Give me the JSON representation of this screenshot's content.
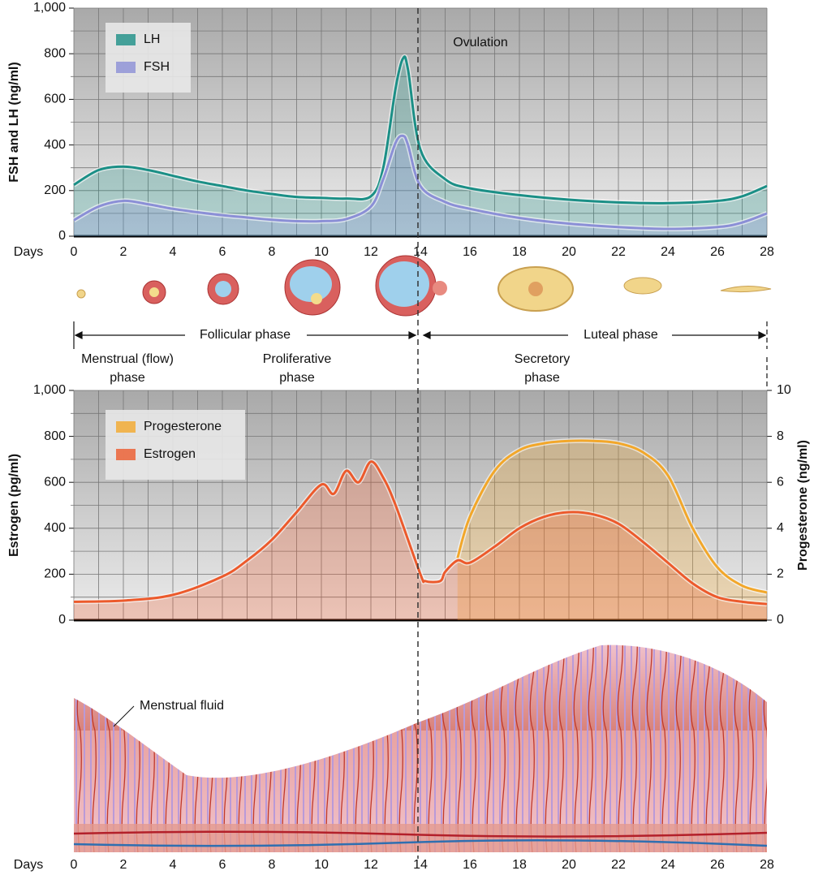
{
  "chart_data": [
    {
      "type": "line",
      "ylabel": "FSH and LH (ng/ml)",
      "xlabel": "Days",
      "x": [
        0,
        1,
        2,
        3,
        4,
        5,
        6,
        7,
        8,
        9,
        10,
        11,
        12,
        12.5,
        13,
        13.3,
        13.5,
        14,
        15,
        16,
        18,
        20,
        22,
        24,
        26,
        27,
        28
      ],
      "series": [
        {
          "name": "LH",
          "color": "#1b8f86",
          "values": [
            225,
            290,
            305,
            290,
            265,
            240,
            220,
            200,
            185,
            172,
            168,
            165,
            175,
            300,
            650,
            780,
            730,
            380,
            250,
            210,
            180,
            160,
            148,
            145,
            155,
            175,
            220
          ]
        },
        {
          "name": "FSH",
          "color": "#8b8fd6",
          "values": [
            70,
            130,
            155,
            140,
            120,
            105,
            92,
            82,
            72,
            66,
            66,
            75,
            130,
            250,
            410,
            440,
            400,
            220,
            150,
            120,
            80,
            55,
            40,
            32,
            40,
            60,
            100
          ]
        }
      ],
      "xlim": [
        0,
        28
      ],
      "xticks": [
        0,
        2,
        4,
        6,
        8,
        10,
        12,
        14,
        16,
        18,
        20,
        22,
        24,
        26,
        28
      ],
      "ylim": [
        0,
        1000
      ],
      "yticks": [
        0,
        200,
        400,
        600,
        800,
        {
          "value": 1000,
          "label": "1,000"
        }
      ],
      "grid": true,
      "minor_grid": true,
      "legend": "upper left",
      "annotations": [
        "Ovulation"
      ]
    },
    {
      "type": "line",
      "ylabel": "Estrogen (pg/ml)",
      "y2label": "Progesterone (ng/ml)",
      "xlabel": "Days",
      "x": [
        0,
        2,
        4,
        6,
        7,
        8,
        9,
        10,
        10.5,
        11,
        11.5,
        12,
        12.5,
        13,
        14,
        14.2,
        14.8,
        15,
        15.5,
        16,
        17,
        18,
        19,
        20,
        21,
        22,
        23,
        24,
        25,
        26,
        27,
        28
      ],
      "series": [
        {
          "name": "Progesterone",
          "color": "#f2a72a",
          "axis": "y2",
          "values": [
            null,
            null,
            null,
            null,
            null,
            null,
            null,
            null,
            null,
            null,
            null,
            null,
            null,
            null,
            null,
            null,
            null,
            null,
            2.7,
            4.5,
            6.5,
            7.4,
            7.7,
            7.8,
            7.8,
            7.7,
            7.3,
            6.3,
            4,
            2.3,
            1.5,
            1.2
          ]
        },
        {
          "name": "Estrogen",
          "color": "#ec5a2c",
          "values": [
            80,
            85,
            110,
            190,
            260,
            350,
            470,
            590,
            550,
            650,
            600,
            690,
            620,
            500,
            200,
            170,
            170,
            210,
            260,
            250,
            320,
            400,
            450,
            470,
            460,
            420,
            340,
            250,
            160,
            100,
            80,
            70
          ]
        }
      ],
      "xlim": [
        0,
        28
      ],
      "xticks": [
        0,
        2,
        4,
        6,
        8,
        10,
        12,
        14,
        16,
        18,
        20,
        22,
        24,
        26,
        28
      ],
      "ylim": [
        0,
        1000
      ],
      "yticks": [
        0,
        200,
        400,
        600,
        800,
        {
          "value": 1000,
          "label": "1,000"
        }
      ],
      "y2lim": [
        0,
        10
      ],
      "y2ticks": [
        0,
        2,
        4,
        6,
        8,
        10
      ],
      "grid": true,
      "minor_grid": true,
      "legend": "upper left"
    }
  ],
  "phases": {
    "ovarian": [
      "Follicular phase",
      "Luteal phase"
    ],
    "uterine": [
      [
        "Menstrual (flow)",
        "phase"
      ],
      [
        "Proliferative",
        "phase"
      ],
      [
        "Secretory",
        "phase"
      ]
    ]
  },
  "illustration_label": "Menstrual fluid"
}
